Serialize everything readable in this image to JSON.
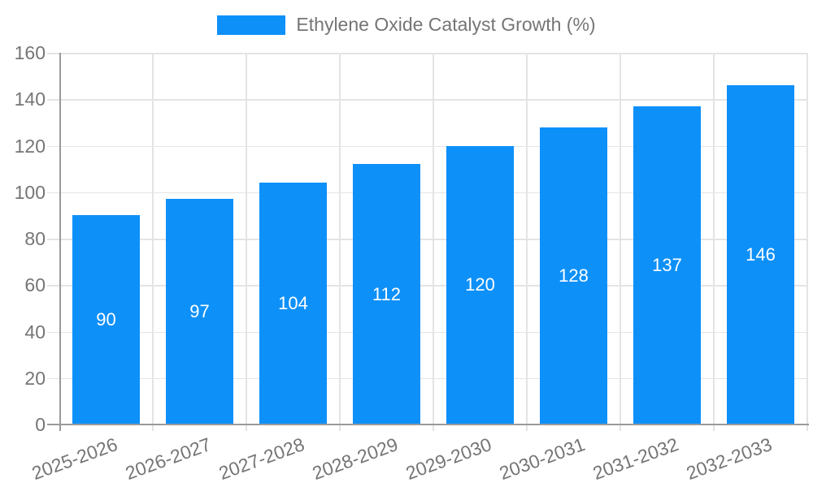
{
  "legend": {
    "label": "Ethylene Oxide Catalyst Growth (%)"
  },
  "chart_data": {
    "type": "bar",
    "title": "Ethylene Oxide Catalyst Growth (%)",
    "series": [
      {
        "name": "Ethylene Oxide Catalyst Growth (%)",
        "values": [
          90,
          97,
          104,
          112,
          120,
          128,
          137,
          146
        ]
      }
    ],
    "categories": [
      "2025-2026",
      "2026-2027",
      "2027-2028",
      "2028-2029",
      "2029-2030",
      "2030-2031",
      "2031-2032",
      "2032-2033"
    ],
    "values": [
      90,
      97,
      104,
      112,
      120,
      128,
      137,
      146
    ],
    "bar_value_labels_shown": true,
    "xlabel": "",
    "ylabel": "",
    "ylim": [
      0,
      160
    ],
    "yticks": [
      0,
      20,
      40,
      60,
      80,
      100,
      120,
      140,
      160
    ],
    "grid": true,
    "legend_position": "top-center"
  },
  "colors": {
    "bar": "#0e90f9",
    "axis": "#9a9a9a",
    "grid": "#e4e4e4",
    "label_text": "#757575",
    "bar_label_text": "#ffffff",
    "background": "#ffffff"
  }
}
